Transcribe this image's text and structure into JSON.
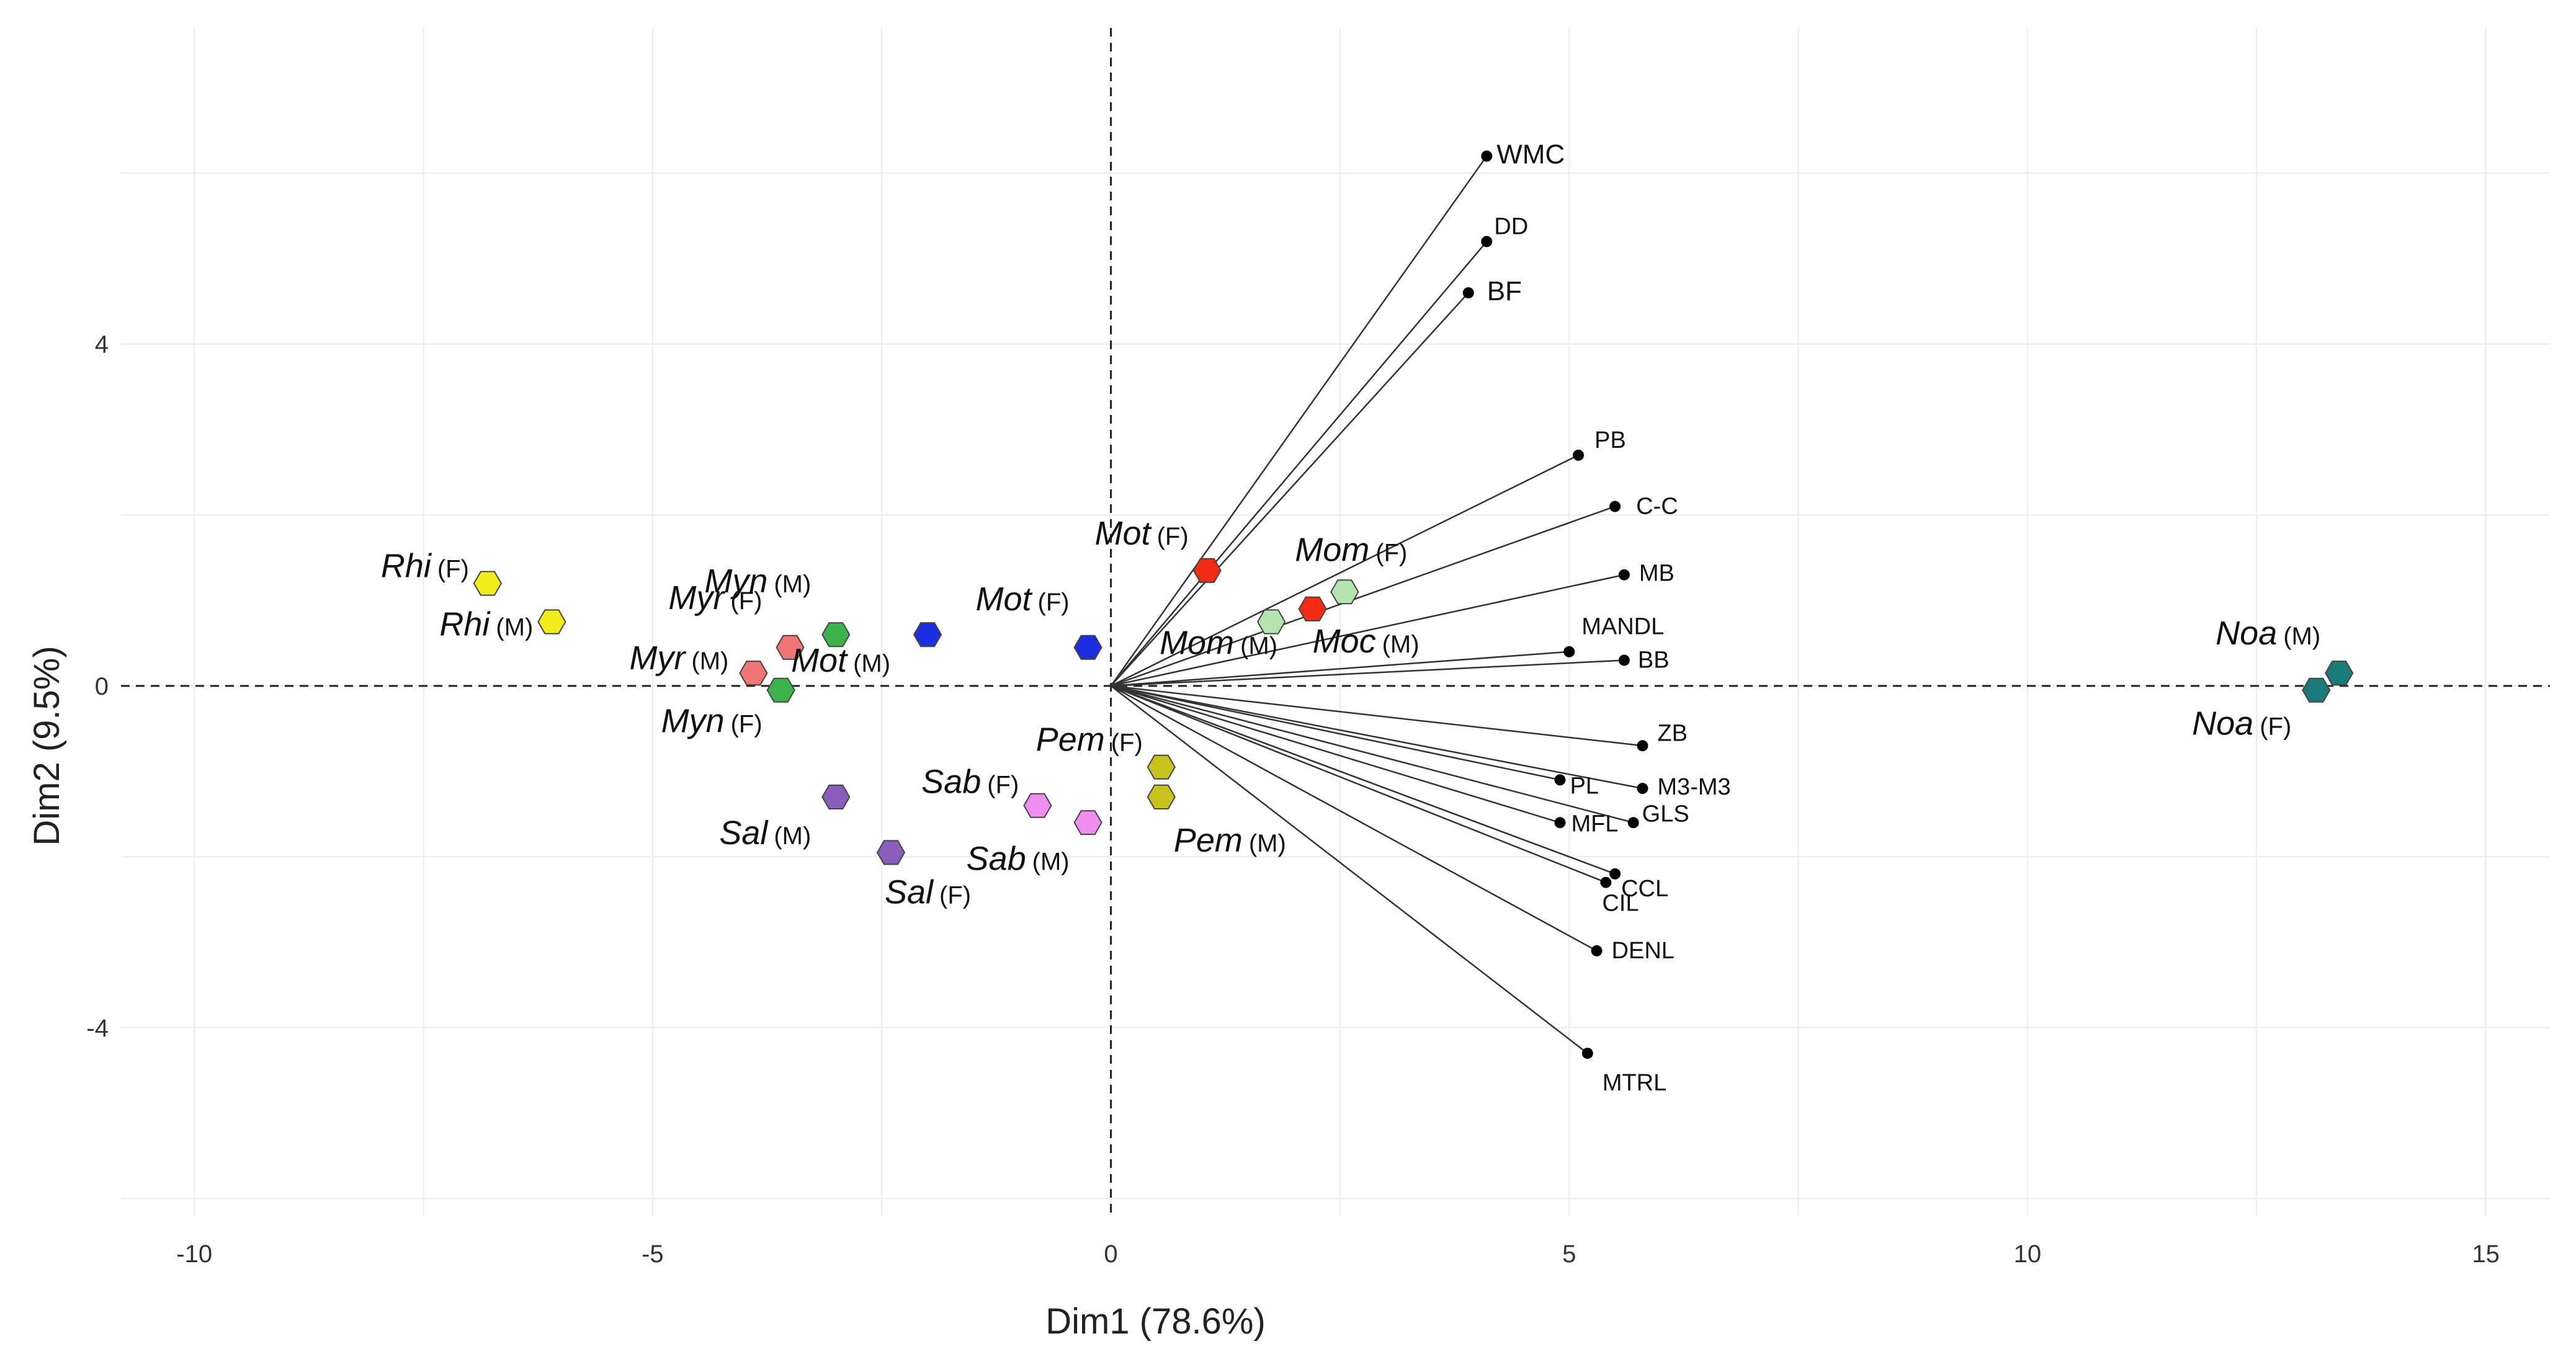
{
  "chart_data": {
    "type": "scatter",
    "title": "",
    "xlabel": "Dim1 (78.6%)",
    "ylabel": "Dim2 (9.5%)",
    "xlim": [
      -10.8,
      15.7
    ],
    "ylim": [
      -6.2,
      7.7
    ],
    "xticks": [
      {
        "value": -10,
        "label": "-10"
      },
      {
        "value": -5,
        "label": "-5"
      },
      {
        "value": 0,
        "label": "0"
      },
      {
        "value": 5,
        "label": "5"
      },
      {
        "value": 10,
        "label": "10"
      },
      {
        "value": 15,
        "label": "15"
      }
    ],
    "yticks": [
      {
        "value": -4,
        "label": "-4"
      },
      {
        "value": 0,
        "label": "0"
      },
      {
        "value": 4,
        "label": "4"
      }
    ],
    "grid": true,
    "reference_lines": [
      {
        "axis": "x",
        "value": 0,
        "style": "dashed"
      },
      {
        "axis": "y",
        "value": 0,
        "style": "dashed"
      }
    ],
    "variables": [
      {
        "name": "WMC",
        "x": 4.1,
        "y": 6.2
      },
      {
        "name": "DD",
        "x": 4.1,
        "y": 5.2
      },
      {
        "name": "BF",
        "x": 3.9,
        "y": 4.6
      },
      {
        "name": "PB",
        "x": 5.1,
        "y": 2.7
      },
      {
        "name": "C-C",
        "x": 5.5,
        "y": 2.1
      },
      {
        "name": "MB",
        "x": 5.6,
        "y": 1.3
      },
      {
        "name": "MANDL",
        "x": 5.0,
        "y": 0.4
      },
      {
        "name": "BB",
        "x": 5.6,
        "y": 0.3
      },
      {
        "name": "ZB",
        "x": 5.8,
        "y": -0.7
      },
      {
        "name": "PL",
        "x": 4.9,
        "y": -1.1
      },
      {
        "name": "M3-M3",
        "x": 5.8,
        "y": -1.2
      },
      {
        "name": "MFL",
        "x": 4.9,
        "y": -1.6
      },
      {
        "name": "GLS",
        "x": 5.7,
        "y": -1.6
      },
      {
        "name": "CCL",
        "x": 5.5,
        "y": -2.2
      },
      {
        "name": "CIL",
        "x": 5.4,
        "y": -2.3
      },
      {
        "name": "DENL",
        "x": 5.3,
        "y": -3.1
      },
      {
        "name": "MTRL",
        "x": 5.2,
        "y": -4.3
      }
    ],
    "groups": [
      {
        "name": "Rhi",
        "sex": "(F)",
        "x": -6.8,
        "y": 1.2,
        "color": "#f2ec1c"
      },
      {
        "name": "Rhi",
        "sex": "(M)",
        "x": -6.1,
        "y": 0.75,
        "color": "#f2ec1c"
      },
      {
        "name": "Myn",
        "sex": "(M)",
        "x": -3.0,
        "y": 0.6,
        "color": "#3cb34a"
      },
      {
        "name": "Myn",
        "sex": "(F)",
        "x": -3.6,
        "y": -0.05,
        "color": "#3cb34a"
      },
      {
        "name": "Myr",
        "sex": "(F)",
        "x": -3.5,
        "y": 0.45,
        "color": "#ef7674"
      },
      {
        "name": "Myr",
        "sex": "(M)",
        "x": -3.9,
        "y": 0.15,
        "color": "#ef7674"
      },
      {
        "name": "Mot",
        "sex": "(M)",
        "x": -2.0,
        "y": 0.6,
        "color": "#1c2fe0"
      },
      {
        "name": "Mot",
        "sex": "(F)",
        "x": -0.25,
        "y": 0.45,
        "color": "#1c2fe0"
      },
      {
        "name": "Mot",
        "sex": "(F)",
        "x": 1.05,
        "y": 1.35,
        "color": "#f22b12"
      },
      {
        "name": "Moc",
        "sex": "(M)",
        "x": 2.2,
        "y": 0.9,
        "color": "#f22b12"
      },
      {
        "name": "Mom",
        "sex": "(F)",
        "x": 2.55,
        "y": 1.1,
        "color": "#b5e4b0"
      },
      {
        "name": "Mom",
        "sex": "(M)",
        "x": 1.75,
        "y": 0.75,
        "color": "#b5e4b0"
      },
      {
        "name": "Pem",
        "sex": "(F)",
        "x": 0.55,
        "y": -0.95,
        "color": "#c9c21d"
      },
      {
        "name": "Pem",
        "sex": "(M)",
        "x": 0.55,
        "y": -1.3,
        "color": "#c9c21d"
      },
      {
        "name": "Sab",
        "sex": "(F)",
        "x": -0.8,
        "y": -1.4,
        "color": "#f08ef0"
      },
      {
        "name": "Sab",
        "sex": "(M)",
        "x": -0.25,
        "y": -1.6,
        "color": "#f08ef0"
      },
      {
        "name": "Sal",
        "sex": "(M)",
        "x": -3.0,
        "y": -1.3,
        "color": "#8a5dbd"
      },
      {
        "name": "Sal",
        "sex": "(F)",
        "x": -2.4,
        "y": -1.95,
        "color": "#8a5dbd"
      },
      {
        "name": "Noa",
        "sex": "(M)",
        "x": 13.4,
        "y": 0.15,
        "color": "#1a7a7a"
      },
      {
        "name": "Noa",
        "sex": "(F)",
        "x": 13.15,
        "y": -0.05,
        "color": "#1a7a7a"
      }
    ]
  }
}
